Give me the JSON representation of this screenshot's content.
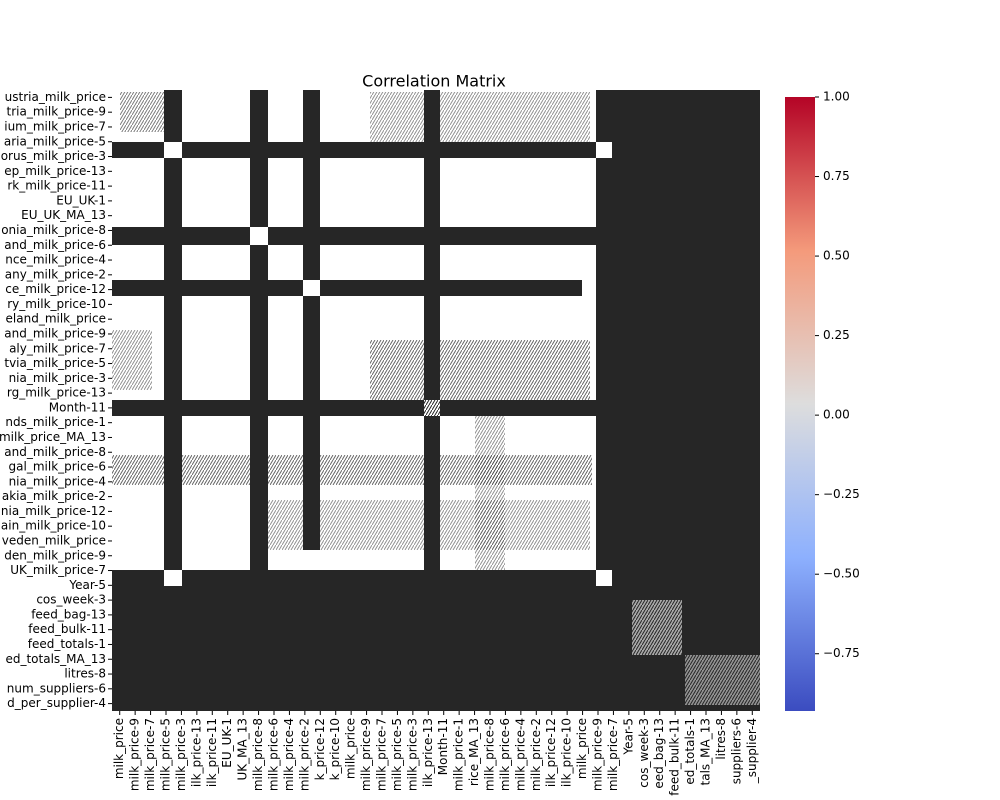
{
  "chart_data": {
    "type": "heatmap",
    "title": "Correlation Matrix",
    "row_labels": [
      "ustria_milk_price",
      "tria_milk_price-9",
      "ium_milk_price-7",
      "aria_milk_price-5",
      "orus_milk_price-3",
      "ep_milk_price-13",
      "rk_milk_price-11",
      "EU_UK-1",
      "EU_UK_MA_13",
      "onia_milk_price-8",
      "and_milk_price-6",
      "nce_milk_price-4",
      "any_milk_price-2",
      "ce_milk_price-12",
      "ry_milk_price-10",
      "eland_milk_price",
      "and_milk_price-9",
      "aly_milk_price-7",
      "tvia_milk_price-5",
      "nia_milk_price-3",
      "rg_milk_price-13",
      "Month-11",
      "nds_milk_price-1",
      "milk_price_MA_13",
      "and_milk_price-8",
      "gal_milk_price-6",
      "nia_milk_price-4",
      "akia_milk_price-2",
      "nia_milk_price-12",
      "ain_milk_price-10",
      "veden_milk_price",
      "den_milk_price-9",
      "UK_milk_price-7",
      "Year-5",
      "cos_week-3",
      "feed_bag-13",
      "feed_bulk-11",
      "feed_totals-1",
      "ed_totals_MA_13",
      "litres-8",
      "num_suppliers-6",
      "d_per_supplier-4"
    ],
    "column_labels": [
      "milk_price",
      "milk_price-9",
      "milk_price-7",
      "milk_price-5",
      "milk_price-3",
      "ilk_price-13",
      "ilk_price-11",
      "EU_UK-1",
      "UK_MA_13",
      "milk_price-8",
      "milk_price-6",
      "milk_price-4",
      "milk_price-2",
      "k_price-12",
      "k_price-10",
      "milk_price",
      "milk_price-9",
      "milk_price-7",
      "milk_price-5",
      "milk_price-3",
      "ilk_price-13",
      "Month-11",
      "milk_price-1",
      "rice_MA_13",
      "milk_price-8",
      "milk_price-6",
      "milk_price-4",
      "milk_price-2",
      "ilk_price-12",
      "ilk_price-10",
      "milk_price",
      "milk_price-9",
      "milk_price-7",
      "Year-5",
      "cos_week-3",
      "eed_bag-13",
      "feed_bulk-11",
      "ed_totals-1",
      "tals_MA_13",
      "litres-8",
      "suppliers-6",
      "_supplier-4"
    ],
    "clim": [
      -0.93,
      1.0
    ],
    "colorbar_ticks": [
      {
        "value": 1.0,
        "label": "1.00"
      },
      {
        "value": 0.75,
        "label": "0.75"
      },
      {
        "value": 0.5,
        "label": "0.50"
      },
      {
        "value": 0.25,
        "label": "0.25"
      },
      {
        "value": 0.0,
        "label": "0.00"
      },
      {
        "value": -0.25,
        "label": "−0.25"
      },
      {
        "value": -0.5,
        "label": "−0.50"
      },
      {
        "value": -0.75,
        "label": "−0.75"
      }
    ],
    "colormap": "coolwarm"
  }
}
